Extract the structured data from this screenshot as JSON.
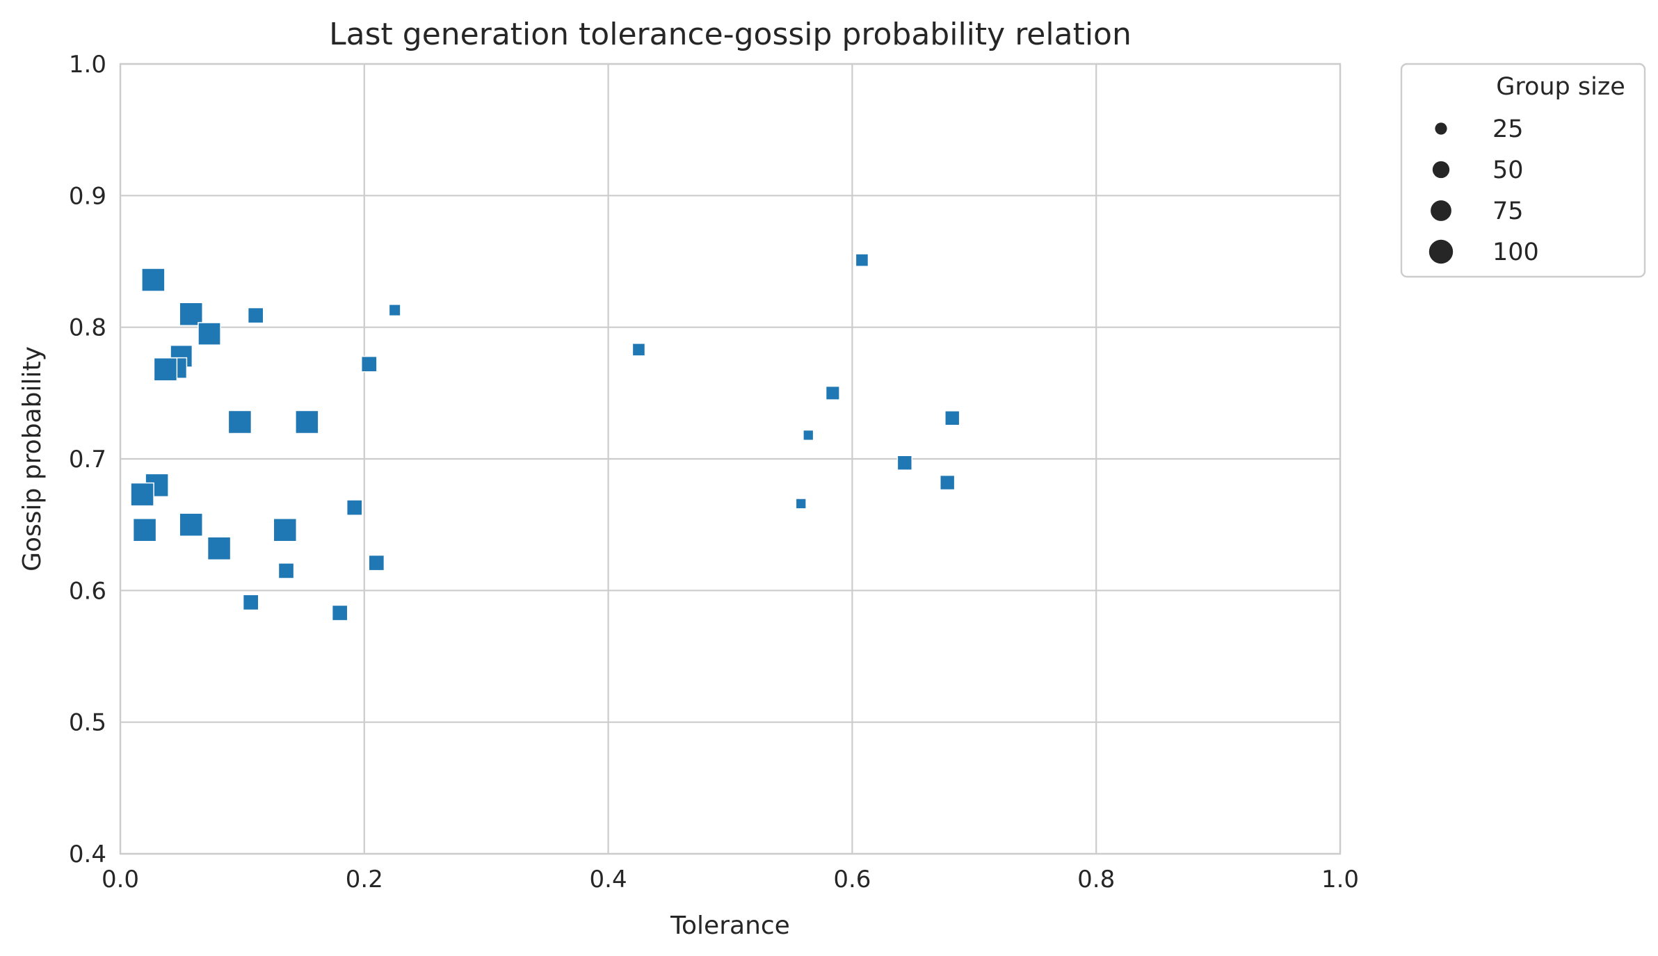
{
  "chart_data": {
    "type": "scatter",
    "title": "Last generation tolerance-gossip probability relation",
    "xlabel": "Tolerance",
    "ylabel": "Gossip probability",
    "xlim": [
      0.0,
      1.0
    ],
    "ylim": [
      0.4,
      1.0
    ],
    "x_ticks": [
      "0.0",
      "0.2",
      "0.4",
      "0.6",
      "0.8",
      "1.0"
    ],
    "y_ticks": [
      "0.4",
      "0.5",
      "0.6",
      "0.7",
      "0.8",
      "0.9",
      "1.0"
    ],
    "grid": true,
    "marker": "square",
    "color": "#1f77b4",
    "legend": {
      "title": "Group size",
      "placement": "outside-top-right",
      "entries": [
        {
          "label": "25",
          "value": 25
        },
        {
          "label": "50",
          "value": 50
        },
        {
          "label": "75",
          "value": 75
        },
        {
          "label": "100",
          "value": 100
        }
      ]
    },
    "size_range": [
      10,
      100
    ],
    "points": [
      {
        "x": 0.027,
        "y": 0.836,
        "size": 100
      },
      {
        "x": 0.058,
        "y": 0.81,
        "size": 100
      },
      {
        "x": 0.073,
        "y": 0.795,
        "size": 95
      },
      {
        "x": 0.05,
        "y": 0.778,
        "size": 90
      },
      {
        "x": 0.046,
        "y": 0.769,
        "size": 80
      },
      {
        "x": 0.037,
        "y": 0.768,
        "size": 100
      },
      {
        "x": 0.111,
        "y": 0.809,
        "size": 45
      },
      {
        "x": 0.225,
        "y": 0.813,
        "size": 25
      },
      {
        "x": 0.204,
        "y": 0.772,
        "size": 45
      },
      {
        "x": 0.098,
        "y": 0.728,
        "size": 100
      },
      {
        "x": 0.153,
        "y": 0.728,
        "size": 100
      },
      {
        "x": 0.03,
        "y": 0.68,
        "size": 100
      },
      {
        "x": 0.018,
        "y": 0.673,
        "size": 100
      },
      {
        "x": 0.02,
        "y": 0.646,
        "size": 100
      },
      {
        "x": 0.058,
        "y": 0.65,
        "size": 100
      },
      {
        "x": 0.135,
        "y": 0.646,
        "size": 100
      },
      {
        "x": 0.081,
        "y": 0.632,
        "size": 100
      },
      {
        "x": 0.192,
        "y": 0.663,
        "size": 45
      },
      {
        "x": 0.21,
        "y": 0.621,
        "size": 45
      },
      {
        "x": 0.136,
        "y": 0.615,
        "size": 45
      },
      {
        "x": 0.107,
        "y": 0.591,
        "size": 45
      },
      {
        "x": 0.18,
        "y": 0.583,
        "size": 45
      },
      {
        "x": 0.425,
        "y": 0.783,
        "size": 30
      },
      {
        "x": 0.608,
        "y": 0.851,
        "size": 30
      },
      {
        "x": 0.584,
        "y": 0.75,
        "size": 35
      },
      {
        "x": 0.564,
        "y": 0.718,
        "size": 20
      },
      {
        "x": 0.558,
        "y": 0.666,
        "size": 20
      },
      {
        "x": 0.682,
        "y": 0.731,
        "size": 40
      },
      {
        "x": 0.643,
        "y": 0.697,
        "size": 40
      },
      {
        "x": 0.678,
        "y": 0.682,
        "size": 40
      }
    ]
  }
}
